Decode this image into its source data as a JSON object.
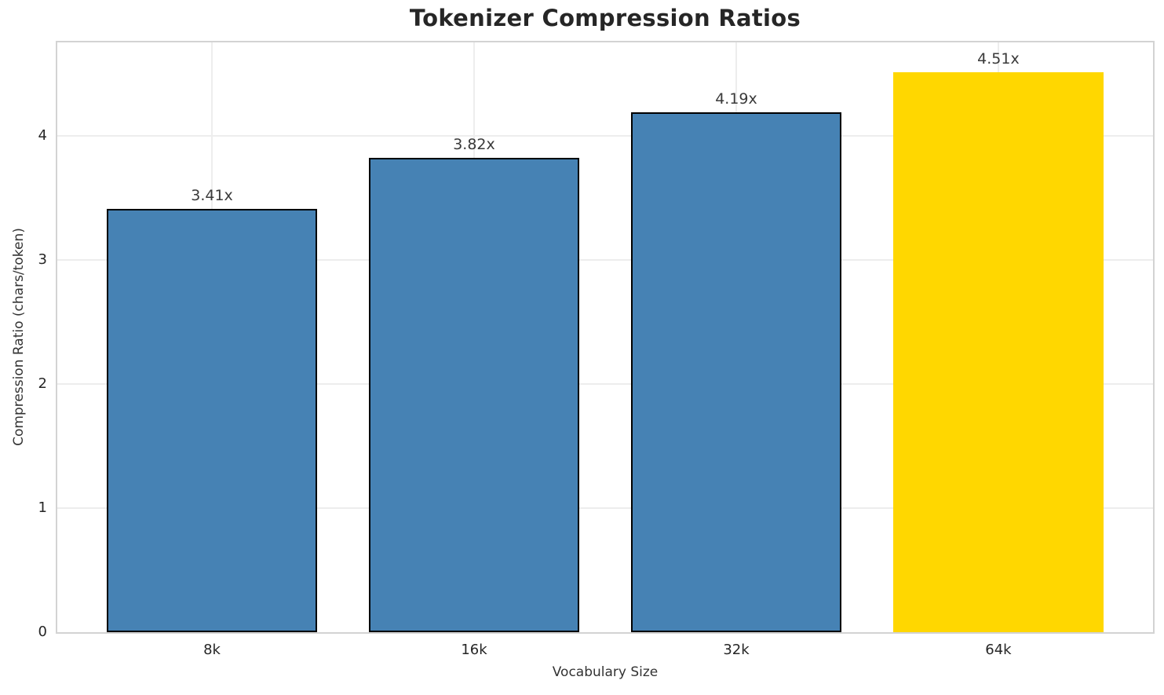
{
  "chart_data": {
    "type": "bar",
    "title": "Tokenizer Compression Ratios",
    "xlabel": "Vocabulary Size",
    "ylabel": "Compression Ratio (chars/token)",
    "categories": [
      "8k",
      "16k",
      "32k",
      "64k"
    ],
    "values": [
      3.41,
      3.82,
      4.19,
      4.51
    ],
    "value_labels": [
      "3.41x",
      "3.82x",
      "4.19x",
      "4.51x"
    ],
    "yticks": [
      0,
      1,
      2,
      3,
      4
    ],
    "ylim": [
      0,
      4.75
    ],
    "xlim": [
      -0.59,
      3.59
    ],
    "bar_width": 0.8,
    "grid": true,
    "legend_position": "none",
    "bar_colors": [
      "#4682B4",
      "#4682B4",
      "#4682B4",
      "#FFD700"
    ],
    "bar_edge_colors": [
      "#000000",
      "#000000",
      "#000000",
      "none"
    ],
    "bar_edge_width": 2,
    "highlight_index": 3
  },
  "style": {
    "background": "#ffffff",
    "grid_color": "#ededed",
    "spine_color": "#d3d3d3",
    "title_color": "#262626",
    "tick_color": "#262626",
    "label_color": "#333333",
    "value_label_color": "#3a3a3a"
  }
}
